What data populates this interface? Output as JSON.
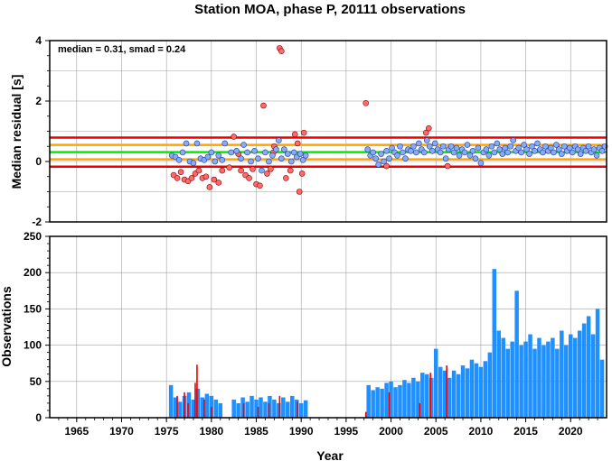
{
  "chart_data": [
    {
      "type": "scatter",
      "title": "Station MOA, phase P, 20111 observations",
      "ylabel": "Median residual [s]",
      "annotation": "median = 0.31, smad = 0.24",
      "xlim": [
        1962,
        2024
      ],
      "ylim": [
        -2,
        4
      ],
      "yticks": [
        "-2",
        "0",
        "2",
        "4"
      ],
      "grid": true,
      "reference_lines": [
        {
          "y": 0.31,
          "color": "#00ee00"
        },
        {
          "y": 0.55,
          "color": "#ffa500"
        },
        {
          "y": 0.07,
          "color": "#ffa500"
        },
        {
          "y": 0.79,
          "color": "#ee0000"
        },
        {
          "y": -0.17,
          "color": "#ee0000"
        }
      ],
      "outlier_points": [
        [
          1975.8,
          -0.45
        ],
        [
          1976.2,
          -0.55
        ],
        [
          1976.6,
          -0.35
        ],
        [
          1977.0,
          -0.6
        ],
        [
          1977.4,
          -0.65
        ],
        [
          1977.8,
          -0.55
        ],
        [
          1978.2,
          -0.4
        ],
        [
          1978.6,
          -0.3
        ],
        [
          1979.0,
          -0.55
        ],
        [
          1979.4,
          -0.5
        ],
        [
          1979.8,
          -0.85
        ],
        [
          1980.3,
          -0.6
        ],
        [
          1980.8,
          -0.7
        ],
        [
          1981.2,
          -0.3
        ],
        [
          1982.0,
          -0.2
        ],
        [
          1982.5,
          0.82
        ],
        [
          1983.3,
          -0.3
        ],
        [
          1983.8,
          -0.45
        ],
        [
          1984.2,
          -0.55
        ],
        [
          1984.6,
          -0.25
        ],
        [
          1985.0,
          -0.75
        ],
        [
          1985.4,
          -0.8
        ],
        [
          1985.8,
          1.85
        ],
        [
          1986.2,
          -0.4
        ],
        [
          1986.6,
          -0.25
        ],
        [
          1987.0,
          0.5
        ],
        [
          1987.6,
          3.75
        ],
        [
          1987.8,
          3.65
        ],
        [
          1988.3,
          -0.55
        ],
        [
          1988.8,
          -0.3
        ],
        [
          1989.3,
          0.9
        ],
        [
          1989.6,
          0.6
        ],
        [
          1989.8,
          -1.0
        ],
        [
          1990.1,
          -0.4
        ],
        [
          1990.3,
          0.95
        ],
        [
          1997.2,
          1.93
        ],
        [
          1999.5,
          -0.15
        ],
        [
          2003.9,
          0.95
        ],
        [
          2004.2,
          1.1
        ],
        [
          2006.3,
          -0.15
        ],
        [
          1983.0,
          0.25
        ],
        [
          1986.9,
          0.3
        ]
      ],
      "inlier_points": [
        [
          1975.6,
          0.2
        ],
        [
          1976.0,
          0.15
        ],
        [
          1976.4,
          0.05
        ],
        [
          1976.8,
          0.3
        ],
        [
          1977.2,
          0.6
        ],
        [
          1977.6,
          0.0
        ],
        [
          1978.0,
          -0.05
        ],
        [
          1978.4,
          0.6
        ],
        [
          1978.8,
          0.1
        ],
        [
          1979.2,
          0.05
        ],
        [
          1979.6,
          0.15
        ],
        [
          1980.0,
          0.3
        ],
        [
          1980.4,
          0.0
        ],
        [
          1980.8,
          0.2
        ],
        [
          1981.2,
          0.05
        ],
        [
          1981.5,
          0.6
        ],
        [
          1982.2,
          0.3
        ],
        [
          1982.8,
          0.35
        ],
        [
          1983.3,
          0.1
        ],
        [
          1983.6,
          0.55
        ],
        [
          1984.0,
          0.3
        ],
        [
          1984.4,
          0.0
        ],
        [
          1984.8,
          0.35
        ],
        [
          1985.2,
          0.1
        ],
        [
          1985.6,
          -0.3
        ],
        [
          1986.0,
          0.3
        ],
        [
          1986.4,
          0.0
        ],
        [
          1986.8,
          0.2
        ],
        [
          1987.2,
          0.4
        ],
        [
          1987.5,
          0.7
        ],
        [
          1987.8,
          0.1
        ],
        [
          1988.1,
          0.4
        ],
        [
          1988.5,
          0.25
        ],
        [
          1988.9,
          0.0
        ],
        [
          1989.2,
          0.3
        ],
        [
          1989.5,
          0.15
        ],
        [
          1989.9,
          0.25
        ],
        [
          1990.2,
          0.05
        ],
        [
          1990.5,
          0.2
        ],
        [
          1997.4,
          0.4
        ],
        [
          1997.7,
          0.2
        ],
        [
          1998.0,
          0.3
        ],
        [
          1998.3,
          0.1
        ],
        [
          1998.6,
          -0.1
        ],
        [
          1998.9,
          0.25
        ],
        [
          1999.2,
          0.0
        ],
        [
          1999.5,
          0.35
        ],
        [
          1999.8,
          0.1
        ],
        [
          2000.1,
          0.45
        ],
        [
          2000.4,
          0.3
        ],
        [
          2000.7,
          0.2
        ],
        [
          2001.0,
          0.5
        ],
        [
          2001.3,
          0.3
        ],
        [
          2001.6,
          0.1
        ],
        [
          2001.9,
          0.4
        ],
        [
          2002.2,
          0.35
        ],
        [
          2002.5,
          0.5
        ],
        [
          2002.8,
          0.3
        ],
        [
          2003.1,
          0.6
        ],
        [
          2003.4,
          0.4
        ],
        [
          2003.7,
          0.3
        ],
        [
          2004.0,
          0.7
        ],
        [
          2004.3,
          0.5
        ],
        [
          2004.6,
          0.35
        ],
        [
          2004.9,
          0.6
        ],
        [
          2005.2,
          0.4
        ],
        [
          2005.5,
          0.3
        ],
        [
          2005.8,
          0.5
        ],
        [
          2006.1,
          0.1
        ],
        [
          2006.4,
          0.4
        ],
        [
          2006.7,
          0.5
        ],
        [
          2007.0,
          0.3
        ],
        [
          2007.3,
          0.45
        ],
        [
          2007.6,
          0.2
        ],
        [
          2007.9,
          0.4
        ],
        [
          2008.2,
          0.3
        ],
        [
          2008.5,
          0.55
        ],
        [
          2008.8,
          0.2
        ],
        [
          2009.1,
          0.35
        ],
        [
          2009.4,
          0.1
        ],
        [
          2009.7,
          0.45
        ],
        [
          2010.0,
          -0.05
        ],
        [
          2010.3,
          0.3
        ],
        [
          2010.6,
          0.4
        ],
        [
          2010.9,
          0.2
        ],
        [
          2011.2,
          0.5
        ],
        [
          2011.5,
          0.3
        ],
        [
          2011.8,
          0.6
        ],
        [
          2012.1,
          0.4
        ],
        [
          2012.4,
          0.25
        ],
        [
          2012.7,
          0.45
        ],
        [
          2013.0,
          0.3
        ],
        [
          2013.3,
          0.5
        ],
        [
          2013.6,
          0.7
        ],
        [
          2013.9,
          0.35
        ],
        [
          2014.2,
          0.45
        ],
        [
          2014.5,
          0.3
        ],
        [
          2014.8,
          0.55
        ],
        [
          2015.1,
          0.4
        ],
        [
          2015.4,
          0.25
        ],
        [
          2015.7,
          0.5
        ],
        [
          2016.0,
          0.35
        ],
        [
          2016.3,
          0.6
        ],
        [
          2016.6,
          0.4
        ],
        [
          2016.9,
          0.3
        ],
        [
          2017.2,
          0.5
        ],
        [
          2017.5,
          0.35
        ],
        [
          2017.8,
          0.45
        ],
        [
          2018.1,
          0.3
        ],
        [
          2018.4,
          0.55
        ],
        [
          2018.7,
          0.4
        ],
        [
          2019.0,
          0.25
        ],
        [
          2019.3,
          0.5
        ],
        [
          2019.6,
          0.35
        ],
        [
          2019.9,
          0.45
        ],
        [
          2020.2,
          0.3
        ],
        [
          2020.5,
          0.5
        ],
        [
          2020.8,
          0.4
        ],
        [
          2021.1,
          0.25
        ],
        [
          2021.4,
          0.45
        ],
        [
          2021.7,
          0.35
        ],
        [
          2022.0,
          0.5
        ],
        [
          2022.3,
          0.3
        ],
        [
          2022.6,
          0.4
        ],
        [
          2022.9,
          0.2
        ],
        [
          2023.2,
          0.45
        ],
        [
          2023.5,
          0.35
        ],
        [
          2023.8,
          0.5
        ]
      ]
    },
    {
      "type": "bar",
      "xlabel": "Year",
      "ylabel": "Observations",
      "xlim": [
        1962,
        2024
      ],
      "ylim": [
        0,
        250
      ],
      "yticks": [
        "0",
        "50",
        "100",
        "150",
        "200",
        "250"
      ],
      "xticks": [
        "1965",
        "1970",
        "1975",
        "1980",
        "1985",
        "1990",
        "1995",
        "2000",
        "2005",
        "2010",
        "2015",
        "2020"
      ],
      "grid": true,
      "series": [
        {
          "color": "#1e90ff",
          "x": [
            1975.5,
            1976.0,
            1976.5,
            1977.0,
            1977.5,
            1978.0,
            1978.5,
            1979.0,
            1979.5,
            1980.0,
            1980.5,
            1981.0,
            1982.5,
            1983.0,
            1983.5,
            1984.0,
            1984.5,
            1985.0,
            1985.5,
            1986.0,
            1986.5,
            1987.0,
            1987.5,
            1988.0,
            1988.5,
            1989.0,
            1989.5,
            1990.0,
            1990.5,
            1997.5,
            1998.0,
            1998.5,
            1999.0,
            1999.5,
            2000.0,
            2000.5,
            2001.0,
            2001.5,
            2002.0,
            2002.5,
            2003.0,
            2003.5,
            2004.0,
            2004.5,
            2005.0,
            2005.5,
            2006.0,
            2006.5,
            2007.0,
            2007.5,
            2008.0,
            2008.5,
            2009.0,
            2009.5,
            2010.0,
            2010.5,
            2011.0,
            2011.5,
            2012.0,
            2012.5,
            2013.0,
            2013.5,
            2014.0,
            2014.5,
            2015.0,
            2015.5,
            2016.0,
            2016.5,
            2017.0,
            2017.5,
            2018.0,
            2018.5,
            2019.0,
            2019.5,
            2020.0,
            2020.5,
            2021.0,
            2021.5,
            2022.0,
            2022.5,
            2023.0,
            2023.5
          ],
          "values": [
            45,
            28,
            22,
            30,
            35,
            25,
            40,
            28,
            33,
            30,
            25,
            20,
            25,
            20,
            28,
            22,
            30,
            25,
            28,
            22,
            30,
            25,
            20,
            28,
            22,
            30,
            25,
            20,
            24,
            45,
            38,
            42,
            40,
            48,
            50,
            42,
            45,
            52,
            48,
            55,
            50,
            62,
            60,
            55,
            95,
            70,
            65,
            55,
            65,
            60,
            72,
            68,
            80,
            75,
            70,
            78,
            90,
            205,
            120,
            110,
            95,
            105,
            175,
            100,
            105,
            115,
            95,
            110,
            100,
            105,
            110,
            95,
            120,
            100,
            115,
            110,
            120,
            130,
            140,
            115,
            150,
            80
          ]
        },
        {
          "color": "#ee0000",
          "x": [
            1976.2,
            1977.0,
            1977.4,
            1978.2,
            1978.4,
            1979.2,
            1980.0,
            1983.6,
            1985.2,
            1986.4,
            1987.6,
            1989.6,
            1997.2,
            1999.8,
            2003.2,
            2004.4,
            2006.2
          ],
          "values": [
            30,
            35,
            20,
            48,
            73,
            25,
            15,
            20,
            15,
            20,
            30,
            22,
            8,
            35,
            20,
            62,
            72
          ]
        }
      ]
    }
  ]
}
